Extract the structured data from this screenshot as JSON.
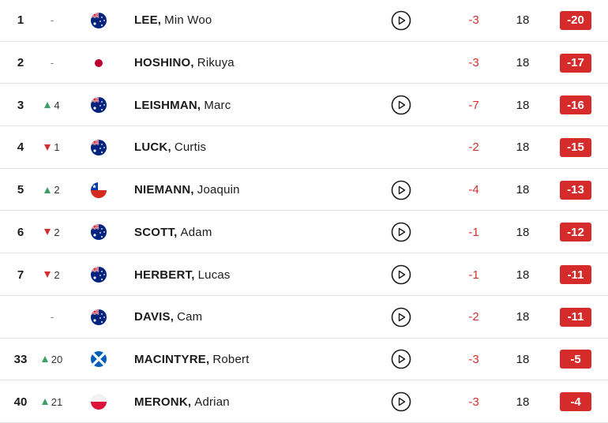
{
  "leaderboard": {
    "rows": [
      {
        "pos": "1",
        "move_dir": "none",
        "move": "-",
        "flag": "australia-flag",
        "last": "LEE,",
        "first": "Min Woo",
        "video": true,
        "today": "-3",
        "thru": "18",
        "total": "-20"
      },
      {
        "pos": "2",
        "move_dir": "none",
        "move": "-",
        "flag": "japan-flag",
        "last": "HOSHINO,",
        "first": "Rikuya",
        "video": false,
        "today": "-3",
        "thru": "18",
        "total": "-17"
      },
      {
        "pos": "3",
        "move_dir": "up",
        "move": "4",
        "flag": "australia-flag",
        "last": "LEISHMAN,",
        "first": "Marc",
        "video": true,
        "today": "-7",
        "thru": "18",
        "total": "-16"
      },
      {
        "pos": "4",
        "move_dir": "down",
        "move": "1",
        "flag": "australia-flag",
        "last": "LUCK,",
        "first": "Curtis",
        "video": false,
        "today": "-2",
        "thru": "18",
        "total": "-15"
      },
      {
        "pos": "5",
        "move_dir": "up",
        "move": "2",
        "flag": "chile-flag",
        "last": "NIEMANN,",
        "first": "Joaquin",
        "video": true,
        "today": "-4",
        "thru": "18",
        "total": "-13"
      },
      {
        "pos": "6",
        "move_dir": "down",
        "move": "2",
        "flag": "australia-flag",
        "last": "SCOTT,",
        "first": "Adam",
        "video": true,
        "today": "-1",
        "thru": "18",
        "total": "-12"
      },
      {
        "pos": "7",
        "move_dir": "down",
        "move": "2",
        "flag": "australia-flag",
        "last": "HERBERT,",
        "first": "Lucas",
        "video": true,
        "today": "-1",
        "thru": "18",
        "total": "-11"
      },
      {
        "pos": "",
        "move_dir": "none",
        "move": "-",
        "flag": "australia-flag",
        "last": "DAVIS,",
        "first": "Cam",
        "video": true,
        "today": "-2",
        "thru": "18",
        "total": "-11"
      },
      {
        "pos": "33",
        "move_dir": "up",
        "move": "20",
        "flag": "scotland-flag",
        "last": "MACINTYRE,",
        "first": "Robert",
        "video": true,
        "today": "-3",
        "thru": "18",
        "total": "-5"
      },
      {
        "pos": "40",
        "move_dir": "up",
        "move": "21",
        "flag": "poland-flag",
        "last": "MERONK,",
        "first": "Adrian",
        "video": true,
        "today": "-3",
        "thru": "18",
        "total": "-4"
      }
    ]
  },
  "colors": {
    "total_badge": "#d52b2b",
    "today_score": "#d32f2f",
    "move_up": "#3aa063",
    "move_down": "#d32f2f",
    "separator": "#e2e2e2"
  }
}
